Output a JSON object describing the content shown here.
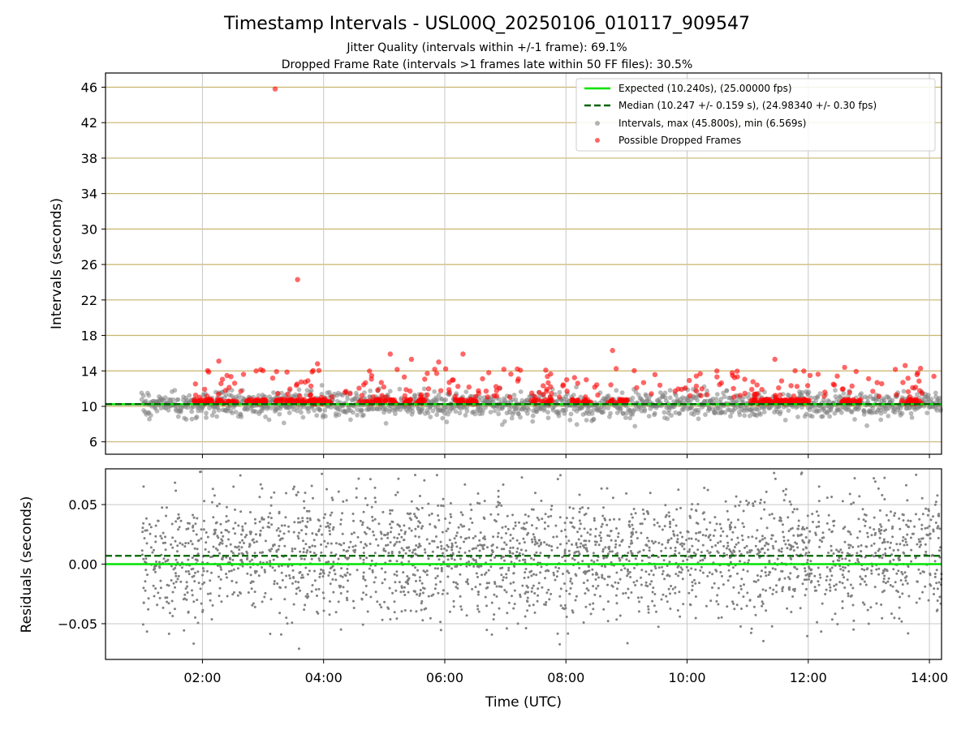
{
  "title": "Timestamp Intervals - USL00Q_20250106_010117_909547",
  "subtitle_lines": [
    "Jitter Quality (intervals within +/-1 frame): 69.1%",
    "Dropped Frame Rate (intervals >1 frames late within 50 FF files): 30.5%"
  ],
  "colors": {
    "expected": "#00e400",
    "median": "#006400",
    "intervals": "#808080",
    "dropped": "#ff0000",
    "upper_grid": "#c8b46e",
    "grid": "#c8c8c8"
  },
  "chart_data": [
    {
      "type": "scatter",
      "ylabel": "Intervals (seconds)",
      "x_unit": "hours UTC",
      "xlim": [
        0.4,
        14.2
      ],
      "ylim": [
        4.6,
        47.6
      ],
      "yticks": [
        6,
        10,
        14,
        18,
        22,
        26,
        30,
        34,
        38,
        42,
        46
      ],
      "grid": true,
      "legend_position": "upper right",
      "legend": [
        "Expected (10.240s), (25.00000 fps)",
        "Median (10.247 +/- 0.159 s), (24.98340 +/- 0.30 fps)",
        "Intervals, max (45.800s), min (6.569s)",
        "Possible Dropped Frames"
      ],
      "expected_value": 10.24,
      "median_value": 10.247,
      "data_time_range": [
        1.0,
        14.2
      ],
      "intervals_max": 45.8,
      "intervals_min": 6.569,
      "dropped_outliers": [
        {
          "x": 3.2,
          "y": 45.8
        },
        {
          "x": 3.57,
          "y": 24.3
        },
        {
          "x": 5.1,
          "y": 15.9
        },
        {
          "x": 6.3,
          "y": 15.9
        },
        {
          "x": 8.77,
          "y": 16.3
        },
        {
          "x": 2.27,
          "y": 15.1
        },
        {
          "x": 5.45,
          "y": 15.3
        },
        {
          "x": 5.9,
          "y": 15.0
        },
        {
          "x": 3.9,
          "y": 14.8
        },
        {
          "x": 11.45,
          "y": 15.3
        },
        {
          "x": 13.6,
          "y": 14.6
        },
        {
          "x": 12.6,
          "y": 14.4
        }
      ]
    },
    {
      "type": "scatter",
      "xlabel": "Time (UTC)",
      "ylabel": "Residuals (seconds)",
      "xlim": [
        0.4,
        14.2
      ],
      "ylim": [
        -0.08,
        0.08
      ],
      "xticks": [
        2,
        4,
        6,
        8,
        10,
        12,
        14
      ],
      "xtick_labels": [
        "02:00",
        "04:00",
        "06:00",
        "08:00",
        "10:00",
        "12:00",
        "14:00"
      ],
      "yticks": [
        0.05,
        0.0,
        -0.05
      ],
      "ytick_labels": [
        "0.05",
        "0.00",
        "−0.05"
      ],
      "grid": true,
      "expected_residual": 0.0,
      "median_residual": 0.007,
      "residual_spread_sd": 0.026
    }
  ]
}
